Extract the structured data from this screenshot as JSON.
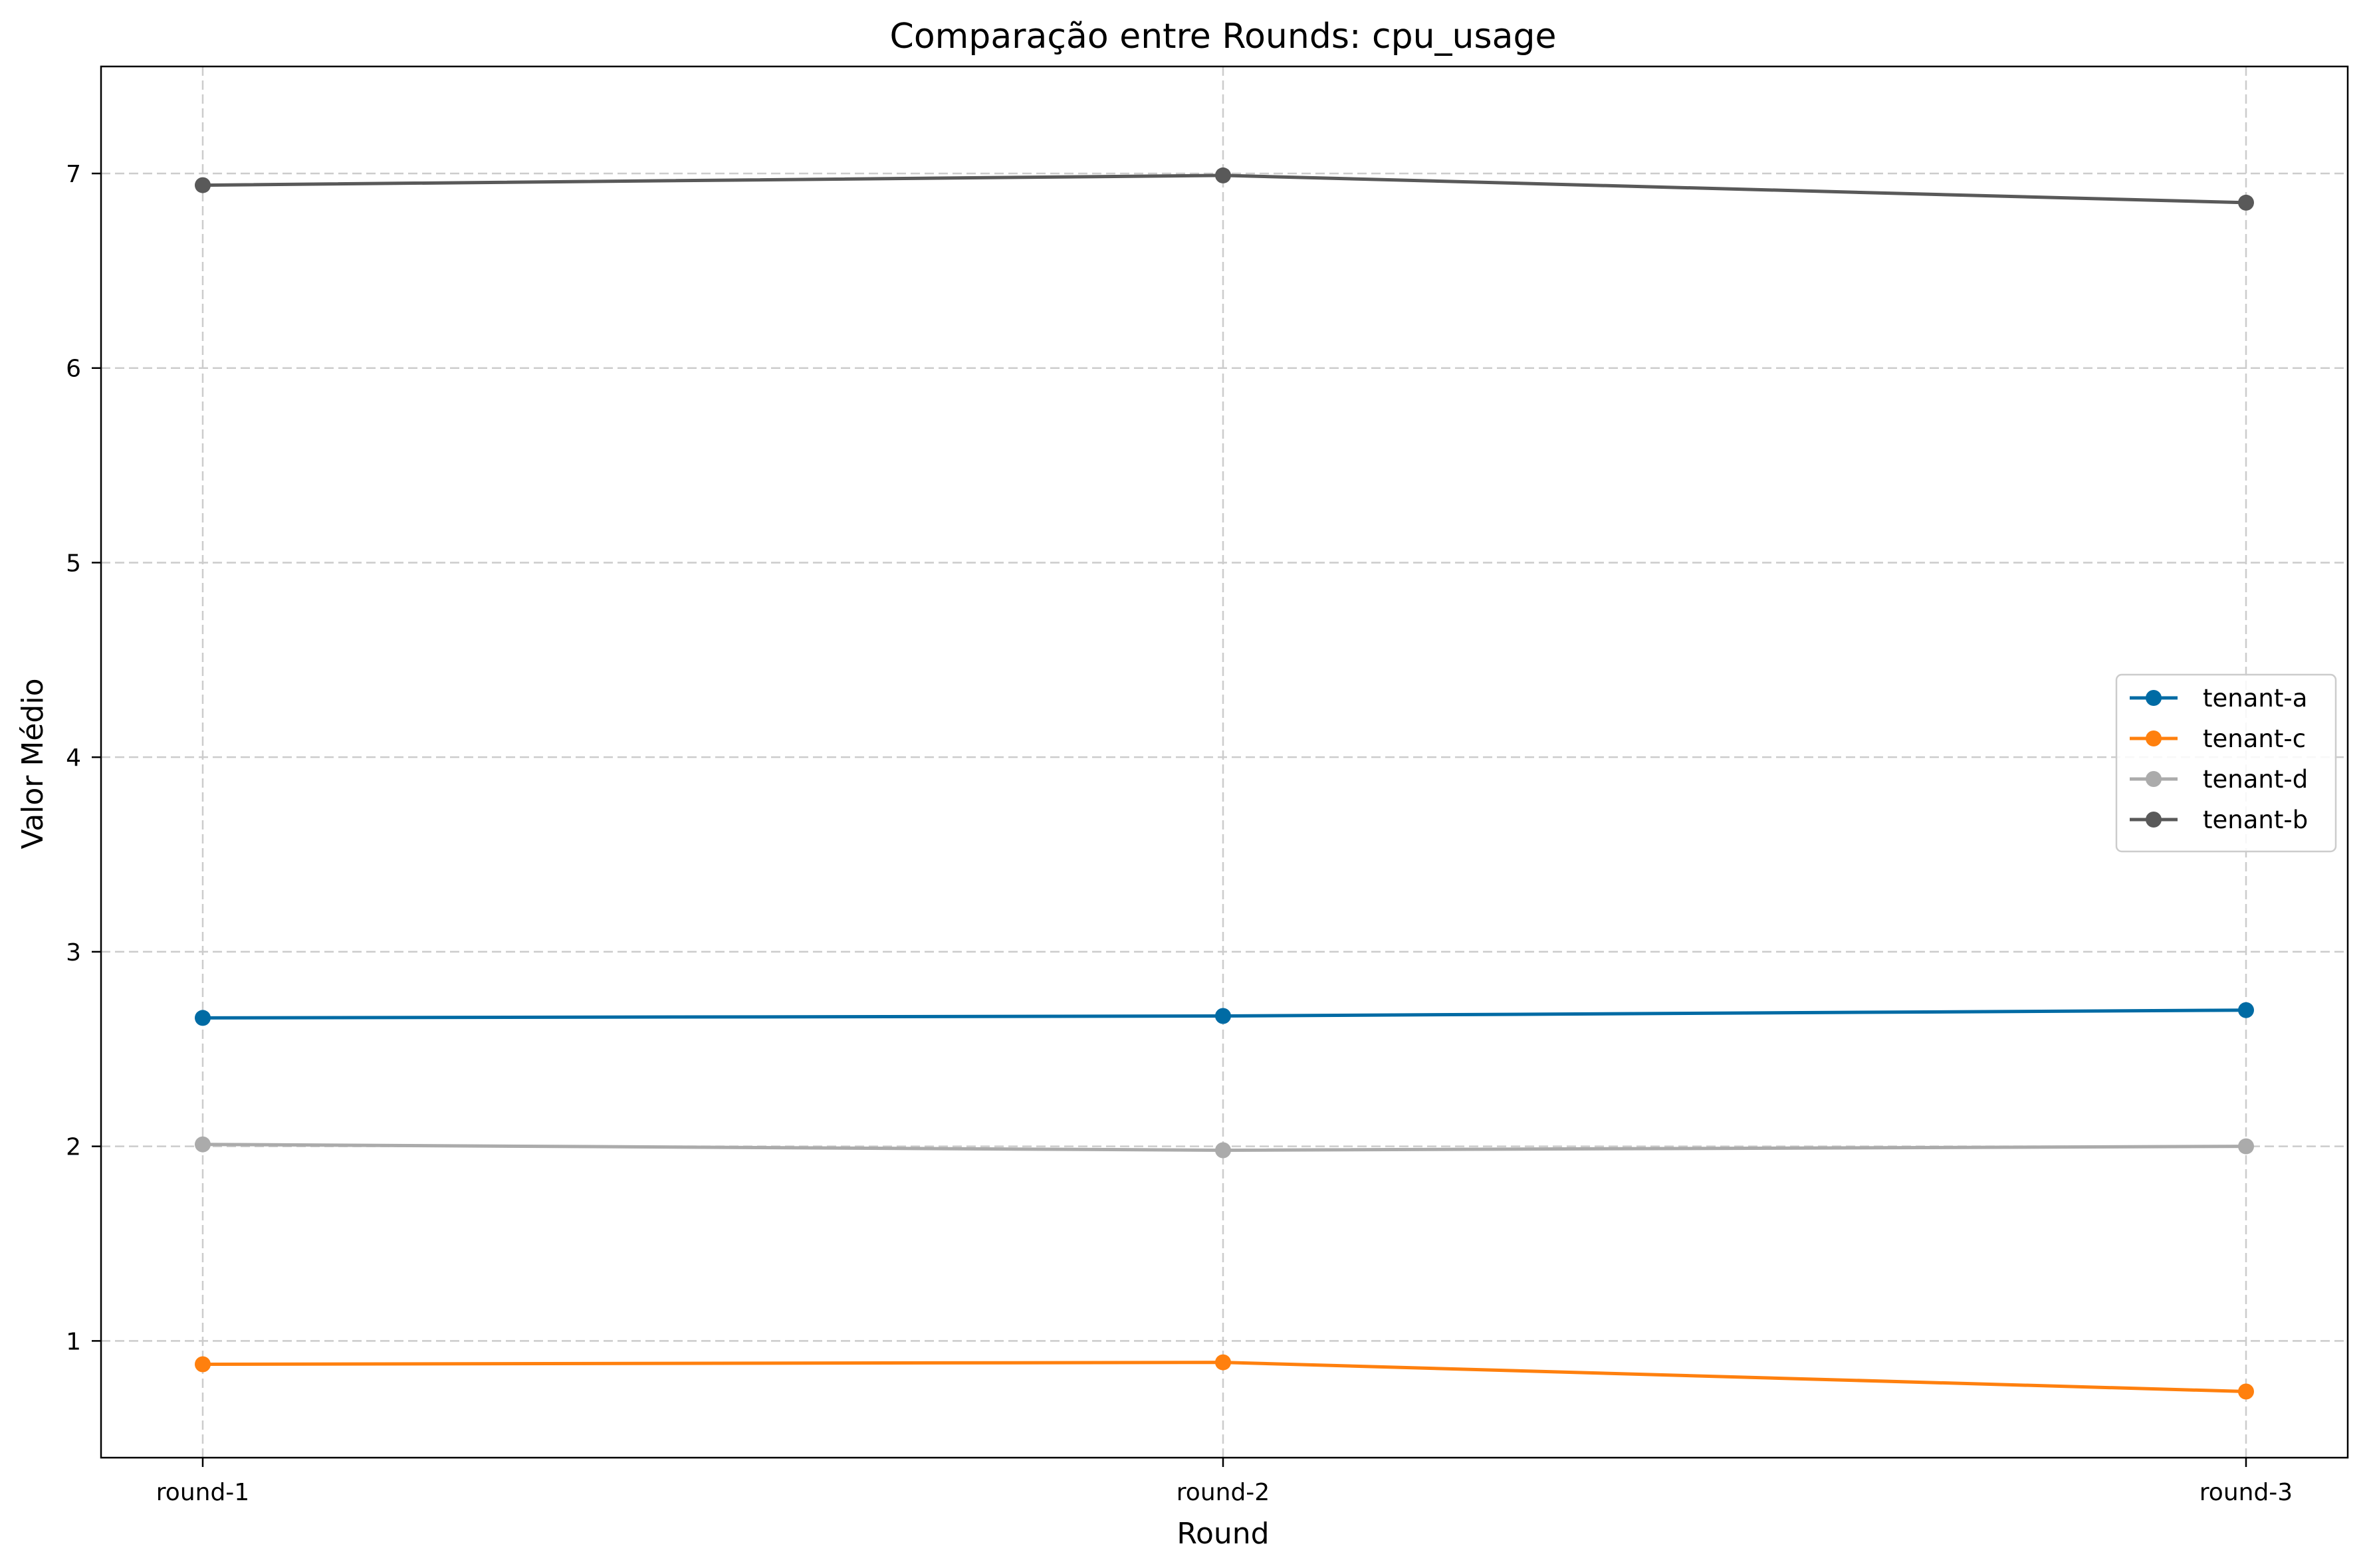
{
  "chart_data": {
    "type": "line",
    "title": "Comparação entre Rounds: cpu_usage",
    "xlabel": "Round",
    "ylabel": "Valor Médio",
    "categories": [
      "round-1",
      "round-2",
      "round-3"
    ],
    "ylim": [
      0.4,
      7.55
    ],
    "yticks": [
      1,
      2,
      3,
      4,
      5,
      6,
      7
    ],
    "grid": true,
    "legend_position": "center-right",
    "series": [
      {
        "name": "tenant-a",
        "color": "#006ba4",
        "values": [
          2.66,
          2.67,
          2.7
        ]
      },
      {
        "name": "tenant-c",
        "color": "#ff800e",
        "values": [
          0.88,
          0.89,
          0.74
        ]
      },
      {
        "name": "tenant-d",
        "color": "#ababab",
        "values": [
          2.01,
          1.98,
          2.0
        ]
      },
      {
        "name": "tenant-b",
        "color": "#595959",
        "values": [
          6.94,
          6.99,
          6.85
        ]
      }
    ]
  }
}
